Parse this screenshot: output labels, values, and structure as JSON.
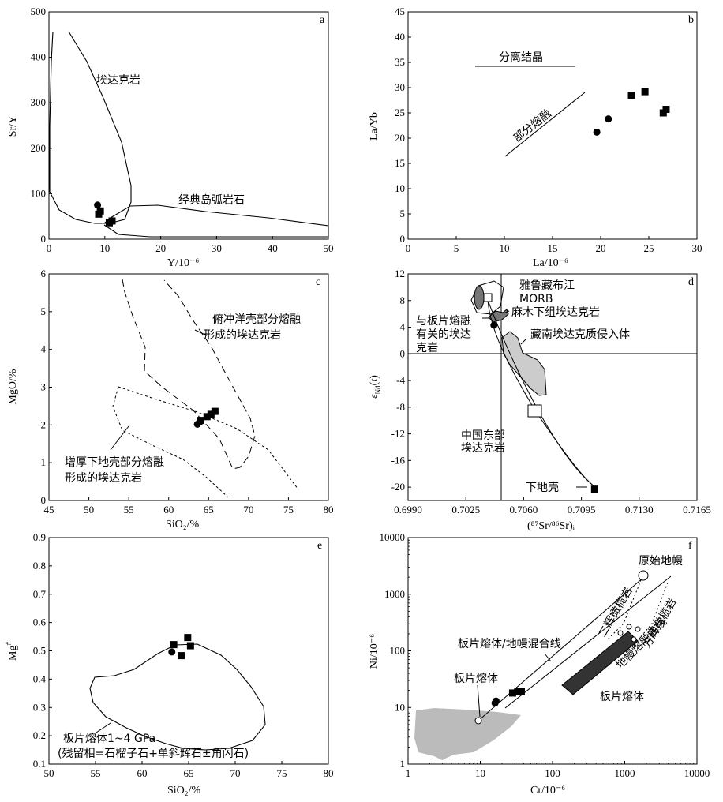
{
  "chart_data": [
    {
      "panel": "a",
      "type": "scatter",
      "xlabel": "Y/10⁻⁶",
      "ylabel": "Sr/Y",
      "xlim": [
        0,
        50
      ],
      "ylim": [
        0,
        500
      ],
      "xticks": [
        0,
        10,
        20,
        30,
        40,
        50
      ],
      "yticks": [
        0,
        100,
        200,
        300,
        400,
        500
      ],
      "annotations": [
        "埃达克岩",
        "经典岛弧岩石"
      ],
      "series": [
        {
          "marker": "circle",
          "points": [
            [
              8.7,
              75
            ]
          ]
        },
        {
          "marker": "square",
          "points": [
            [
              9.2,
              62
            ],
            [
              8.9,
              55
            ],
            [
              11.3,
              40
            ],
            [
              10.8,
              36
            ]
          ]
        }
      ]
    },
    {
      "panel": "b",
      "type": "scatter",
      "xlabel": "La/10⁻⁶",
      "ylabel": "La/Yb",
      "xlim": [
        0,
        30
      ],
      "ylim": [
        0,
        45
      ],
      "xticks": [
        0,
        5,
        10,
        15,
        20,
        25,
        30
      ],
      "yticks": [
        0,
        5,
        10,
        15,
        20,
        25,
        30,
        35,
        40,
        45
      ],
      "annotations": [
        "分离结晶",
        "部分熔融"
      ],
      "series": [
        {
          "marker": "circle",
          "points": [
            [
              19.6,
              21.2
            ],
            [
              20.8,
              23.8
            ]
          ]
        },
        {
          "marker": "square",
          "points": [
            [
              23.2,
              28.5
            ],
            [
              24.6,
              29.2
            ],
            [
              26.5,
              25.0
            ],
            [
              26.8,
              25.7
            ]
          ]
        }
      ]
    },
    {
      "panel": "c",
      "type": "scatter",
      "xlabel": "SiO₂/%",
      "ylabel": "MgO/%",
      "xlim": [
        45,
        80
      ],
      "ylim": [
        0,
        6
      ],
      "xticks": [
        45,
        50,
        55,
        60,
        65,
        70,
        75,
        80
      ],
      "yticks": [
        0,
        1,
        2,
        3,
        4,
        5,
        6
      ],
      "annotations": [
        "俯冲洋壳部分熔融",
        "形成的埃达克岩",
        "增厚下地壳部分熔融",
        "形成的埃达克岩"
      ],
      "series": [
        {
          "marker": "circle",
          "points": [
            [
              63.6,
              2.02
            ],
            [
              63.9,
              2.08
            ]
          ]
        },
        {
          "marker": "square",
          "points": [
            [
              64.0,
              2.12
            ],
            [
              64.8,
              2.22
            ],
            [
              65.3,
              2.28
            ],
            [
              65.8,
              2.36
            ]
          ]
        }
      ]
    },
    {
      "panel": "d",
      "type": "scatter",
      "xlabel": "(⁸⁷Sr/⁸⁶Sr)ᵢ",
      "ylabel": "εNd(t)",
      "xlim": [
        0.699,
        0.7165
      ],
      "ylim": [
        -22,
        12
      ],
      "xticks": [
        "0.6990",
        "0.7025",
        "0.7060",
        "0.7095",
        "0.7130",
        "0.7165"
      ],
      "yticks": [
        12,
        8,
        4,
        0,
        -4,
        -8,
        -12,
        -16,
        -20
      ],
      "annotations": [
        "雅鲁藏布江",
        "MORB",
        "麻木下组埃达克岩",
        "与板片熔融",
        "有关的埃达",
        "克岩",
        "藏南埃达克质侵入体",
        "中国东部",
        "埃达克岩",
        "下地壳"
      ],
      "series": [
        {
          "marker": "circle",
          "points": [
            [
              0.7042,
              4.3
            ]
          ]
        },
        {
          "marker": "square",
          "points": [
            [
              0.7103,
              -20.3
            ]
          ]
        }
      ]
    },
    {
      "panel": "e",
      "type": "scatter",
      "xlabel": "SiO₂/%",
      "ylabel": "Mg#",
      "xlim": [
        50,
        80
      ],
      "ylim": [
        0.1,
        0.9
      ],
      "xticks": [
        50,
        55,
        60,
        65,
        70,
        75,
        80
      ],
      "yticks": [
        0.1,
        0.2,
        0.3,
        0.4,
        0.5,
        0.6,
        0.7,
        0.8,
        0.9
      ],
      "annotations": [
        "板片熔体1~4 GPa",
        "(残留相=石榴子石+单斜辉石±角闪石)"
      ],
      "series": [
        {
          "marker": "circle",
          "points": [
            [
              63.2,
              0.496
            ]
          ]
        },
        {
          "marker": "square",
          "points": [
            [
              63.4,
              0.522
            ],
            [
              64.2,
              0.483
            ],
            [
              64.9,
              0.547
            ],
            [
              65.2,
              0.518
            ]
          ]
        }
      ]
    },
    {
      "panel": "f",
      "type": "scatter",
      "xlabel": "Cr/10⁻⁶",
      "ylabel": "Ni/10⁻⁶",
      "xscale": "log",
      "yscale": "log",
      "xlim": [
        1,
        10000
      ],
      "ylim": [
        1,
        10000
      ],
      "xticks": [
        1,
        10,
        100,
        1000,
        10000
      ],
      "yticks": [
        1,
        10,
        100,
        1000,
        10000
      ],
      "annotations": [
        "原始地幔",
        "二辉橄榄岩",
        "方辉橄榄岩",
        "板片熔体/地幔混合线",
        "地幔熔融曲线",
        "板片熔体",
        "板片熔体"
      ],
      "series": [
        {
          "marker": "circle",
          "points": [
            [
              16,
              12
            ],
            [
              16.5,
              13
            ]
          ]
        },
        {
          "marker": "square",
          "points": [
            [
              28,
              18
            ],
            [
              33,
              19
            ],
            [
              37,
              19
            ]
          ]
        }
      ]
    }
  ],
  "panel_letters": [
    "a",
    "b",
    "c",
    "d",
    "e",
    "f"
  ]
}
